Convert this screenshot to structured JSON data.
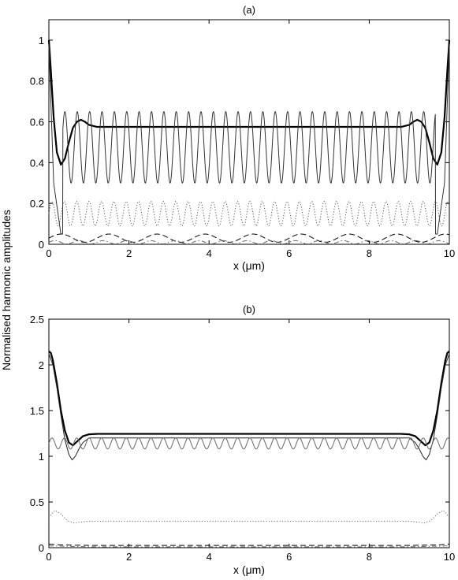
{
  "ylabel": "Normalised harmonic amplitudes",
  "chart_data": [
    {
      "type": "line",
      "title": "(a)",
      "xlabel": "x (μm)",
      "xlim": [
        0,
        10
      ],
      "ylim": [
        0,
        1.1
      ],
      "xticks": [
        "0",
        "2",
        "4",
        "6",
        "8",
        "10"
      ],
      "yticks": [
        "0",
        "0.2",
        "0.4",
        "0.6",
        "0.8",
        "1"
      ],
      "grid": false,
      "series": [
        {
          "style": "solid-thick",
          "color": "#000000",
          "points": [
            [
              0,
              1.0
            ],
            [
              0.05,
              0.85
            ],
            [
              0.12,
              0.62
            ],
            [
              0.2,
              0.45
            ],
            [
              0.3,
              0.39
            ],
            [
              0.4,
              0.42
            ],
            [
              0.5,
              0.5
            ],
            [
              0.6,
              0.57
            ],
            [
              0.7,
              0.6
            ],
            [
              0.8,
              0.61
            ],
            [
              0.9,
              0.6
            ],
            [
              1.0,
              0.585
            ],
            [
              1.2,
              0.575
            ],
            [
              2,
              0.575
            ],
            [
              4,
              0.575
            ],
            [
              6,
              0.575
            ],
            [
              8,
              0.575
            ],
            [
              8.8,
              0.575
            ],
            [
              9.0,
              0.585
            ],
            [
              9.1,
              0.6
            ],
            [
              9.2,
              0.61
            ],
            [
              9.3,
              0.6
            ],
            [
              9.4,
              0.57
            ],
            [
              9.5,
              0.5
            ],
            [
              9.6,
              0.42
            ],
            [
              9.7,
              0.39
            ],
            [
              9.8,
              0.45
            ],
            [
              9.88,
              0.62
            ],
            [
              9.95,
              0.85
            ],
            [
              10,
              1.0
            ]
          ]
        },
        {
          "style": "solid-thin-oscillating",
          "color": "#333333",
          "envelope": {
            "min": 0.3,
            "max": 0.65
          },
          "edge_values": [
            [
              0,
              0.98
            ],
            [
              0.12,
              0.3
            ],
            [
              0.3,
              0.05
            ],
            [
              9.7,
              0.05
            ],
            [
              9.88,
              0.3
            ],
            [
              10,
              0.98
            ]
          ],
          "period": 0.309
        },
        {
          "style": "dotted",
          "color": "#555555",
          "baseline": 0.15,
          "amplitude": 0.06,
          "period": 0.309
        },
        {
          "style": "dashed",
          "color": "#000000",
          "baseline": 0.03,
          "amplitude": 0.02,
          "period": 1.2
        },
        {
          "style": "dash-dot",
          "color": "#666666",
          "baseline": 0.01,
          "amplitude": 0.008,
          "period": 0.6
        }
      ]
    },
    {
      "type": "line",
      "title": "(b)",
      "xlabel": "x (μm)",
      "xlim": [
        0,
        10
      ],
      "ylim": [
        0,
        2.5
      ],
      "xticks": [
        "0",
        "2",
        "4",
        "6",
        "8",
        "10"
      ],
      "yticks": [
        "0",
        "0.5",
        "1",
        "1.5",
        "2",
        "2.5"
      ],
      "grid": false,
      "series": [
        {
          "style": "solid-thick",
          "color": "#000000",
          "points": [
            [
              0,
              2.15
            ],
            [
              0.05,
              2.13
            ],
            [
              0.1,
              2.05
            ],
            [
              0.2,
              1.8
            ],
            [
              0.3,
              1.5
            ],
            [
              0.4,
              1.28
            ],
            [
              0.5,
              1.15
            ],
            [
              0.6,
              1.12
            ],
            [
              0.7,
              1.16
            ],
            [
              0.85,
              1.22
            ],
            [
              1.0,
              1.24
            ],
            [
              1.2,
              1.245
            ],
            [
              2,
              1.245
            ],
            [
              4,
              1.245
            ],
            [
              6,
              1.245
            ],
            [
              8,
              1.245
            ],
            [
              8.8,
              1.245
            ],
            [
              9.0,
              1.24
            ],
            [
              9.15,
              1.22
            ],
            [
              9.3,
              1.16
            ],
            [
              9.4,
              1.12
            ],
            [
              9.5,
              1.15
            ],
            [
              9.6,
              1.28
            ],
            [
              9.7,
              1.5
            ],
            [
              9.8,
              1.8
            ],
            [
              9.9,
              2.05
            ],
            [
              9.95,
              2.13
            ],
            [
              10,
              2.15
            ]
          ]
        },
        {
          "style": "solid-thin",
          "color": "#222222",
          "points": [
            [
              0,
              2.12
            ],
            [
              0.1,
              2.0
            ],
            [
              0.2,
              1.75
            ],
            [
              0.3,
              1.45
            ],
            [
              0.4,
              1.18
            ],
            [
              0.5,
              1.02
            ],
            [
              0.58,
              0.96
            ],
            [
              0.66,
              1.0
            ],
            [
              0.75,
              1.08
            ],
            [
              0.85,
              1.15
            ],
            [
              1.0,
              1.2
            ],
            [
              1.3,
              1.2
            ],
            [
              8.7,
              1.2
            ],
            [
              9.0,
              1.2
            ],
            [
              9.15,
              1.15
            ],
            [
              9.25,
              1.08
            ],
            [
              9.34,
              1.0
            ],
            [
              9.42,
              0.96
            ],
            [
              9.5,
              1.02
            ],
            [
              9.6,
              1.18
            ],
            [
              9.7,
              1.45
            ],
            [
              9.8,
              1.75
            ],
            [
              9.9,
              2.0
            ],
            [
              10,
              2.12
            ]
          ]
        },
        {
          "style": "solid-thin-oscillating",
          "color": "#666666",
          "baseline": 1.14,
          "amplitude": 0.06,
          "period": 0.309
        },
        {
          "style": "dotted",
          "color": "#666666",
          "points": [
            [
              0,
              0.33
            ],
            [
              0.15,
              0.41
            ],
            [
              0.3,
              0.37
            ],
            [
              0.45,
              0.3
            ],
            [
              0.6,
              0.27
            ],
            [
              0.8,
              0.28
            ],
            [
              1.0,
              0.29
            ],
            [
              9.0,
              0.29
            ],
            [
              9.2,
              0.28
            ],
            [
              9.4,
              0.27
            ],
            [
              9.55,
              0.3
            ],
            [
              9.7,
              0.37
            ],
            [
              9.85,
              0.41
            ],
            [
              10,
              0.33
            ]
          ]
        },
        {
          "style": "dashed",
          "color": "#000000",
          "points": [
            [
              0,
              0.04
            ],
            [
              0.3,
              0.03
            ],
            [
              1,
              0.025
            ],
            [
              9,
              0.025
            ],
            [
              9.7,
              0.03
            ],
            [
              10,
              0.04
            ]
          ]
        },
        {
          "style": "dash-dot",
          "color": "#666666",
          "points": [
            [
              0,
              0.02
            ],
            [
              1,
              0.01
            ],
            [
              9,
              0.01
            ],
            [
              10,
              0.02
            ]
          ]
        }
      ]
    }
  ]
}
